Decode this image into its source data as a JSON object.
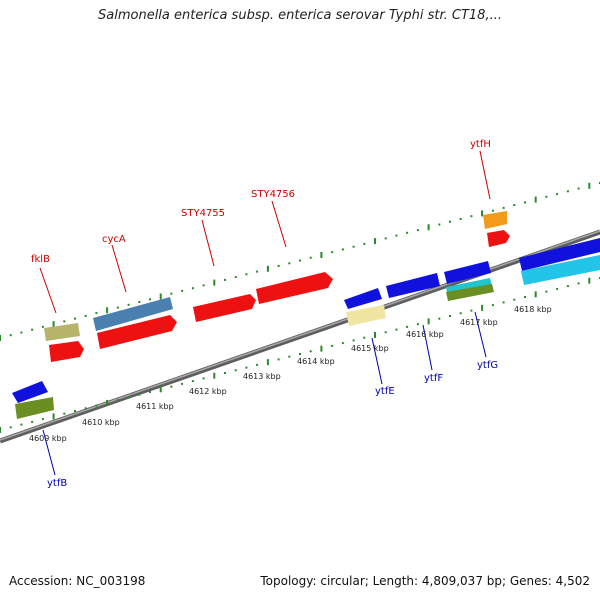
{
  "title": "Salmonella enterica subsp. enterica serovar Typhi str. CT18,...",
  "footer": {
    "accession": "Accession: NC_003198",
    "stats": "Topology: circular; Length: 4,809,037 bp; Genes: 4,502"
  },
  "colors": {
    "forward_label": "#cc0000",
    "reverse_label": "#0000aa",
    "backbone": "#7a7a7a",
    "dots": "#2a8a2a"
  },
  "ticks": [
    {
      "label": "4609 kbp"
    },
    {
      "label": "4610 kbp"
    },
    {
      "label": "4611 kbp"
    },
    {
      "label": "4612 kbp"
    },
    {
      "label": "4613 kbp"
    },
    {
      "label": "4614 kbp"
    },
    {
      "label": "4615 kbp"
    },
    {
      "label": "4616 kbp"
    },
    {
      "label": "4617 kbp"
    },
    {
      "label": "4618 kbp"
    }
  ],
  "gene_labels": [
    {
      "name": "fklB",
      "strand": "forward"
    },
    {
      "name": "cycA",
      "strand": "forward"
    },
    {
      "name": "STY4755",
      "strand": "forward"
    },
    {
      "name": "STY4756",
      "strand": "forward"
    },
    {
      "name": "ytfH",
      "strand": "forward"
    },
    {
      "name": "ytfB",
      "strand": "reverse"
    },
    {
      "name": "ytfE",
      "strand": "reverse"
    },
    {
      "name": "ytfF",
      "strand": "reverse"
    },
    {
      "name": "ytfG",
      "strand": "reverse"
    }
  ]
}
